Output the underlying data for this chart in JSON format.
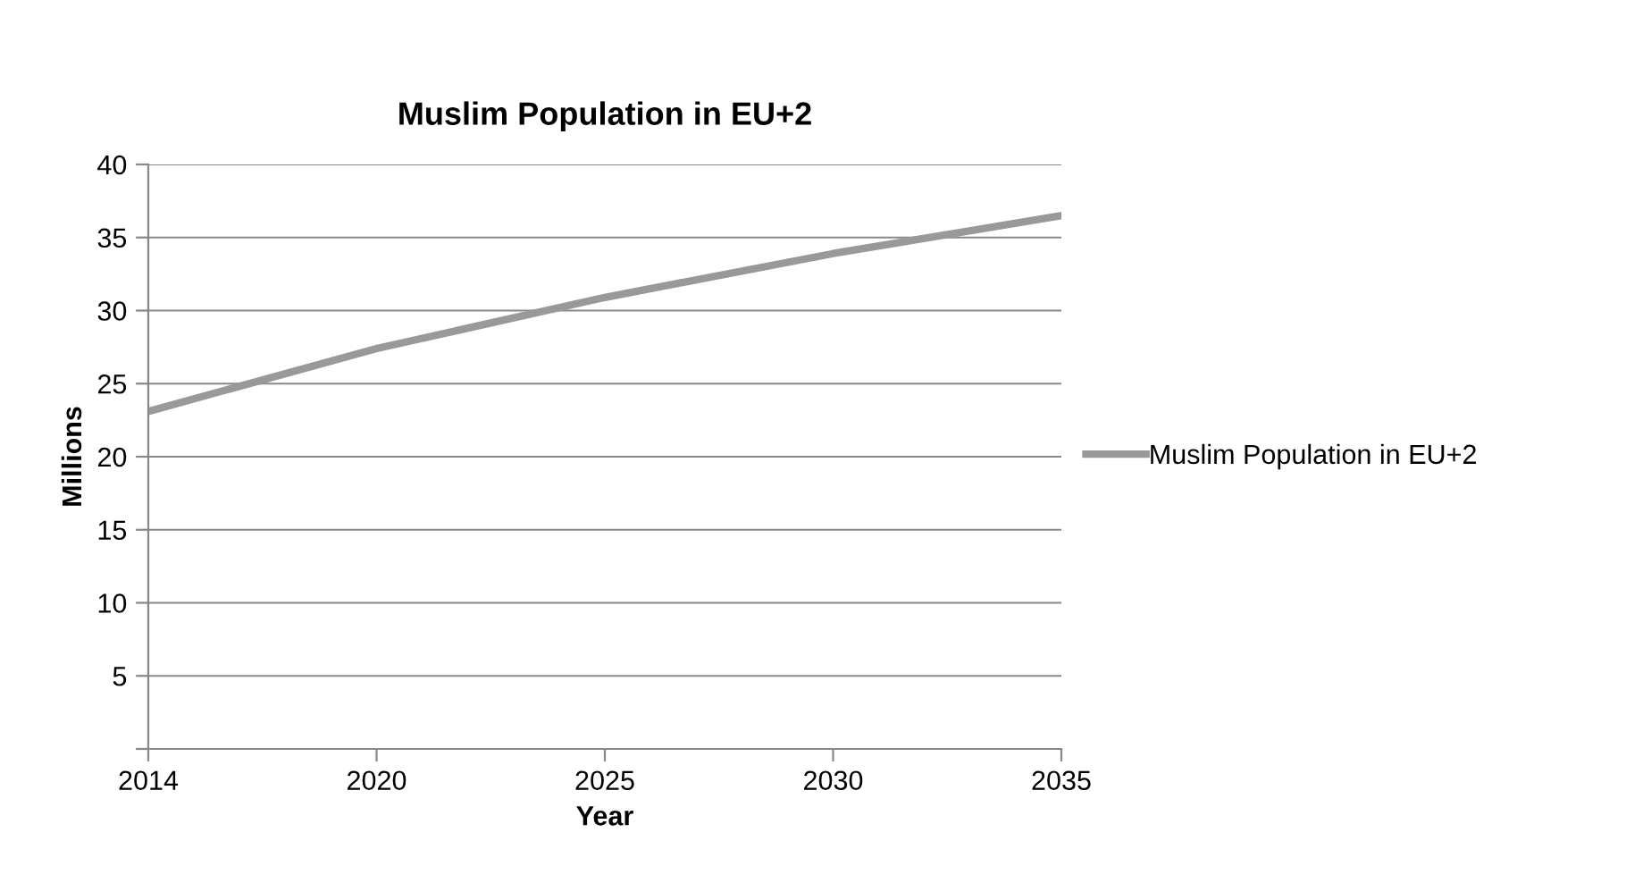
{
  "chart_data": {
    "type": "line",
    "title": "Muslim Population in EU+2",
    "xlabel": "Year",
    "ylabel": "Millions",
    "categories": [
      "2014",
      "2020",
      "2025",
      "2030",
      "2035"
    ],
    "series": [
      {
        "name": "Muslim Population in EU+2",
        "color": "#999999",
        "values": [
          23.1,
          27.4,
          30.9,
          33.9,
          36.5
        ]
      }
    ],
    "ylim": [
      0,
      40
    ],
    "yticks": [
      {
        "value": 0,
        "label": null
      },
      5,
      10,
      15,
      20,
      25,
      30,
      35,
      40
    ],
    "grid": "y",
    "legend": "right",
    "marker": "none",
    "line_style": "solid"
  }
}
